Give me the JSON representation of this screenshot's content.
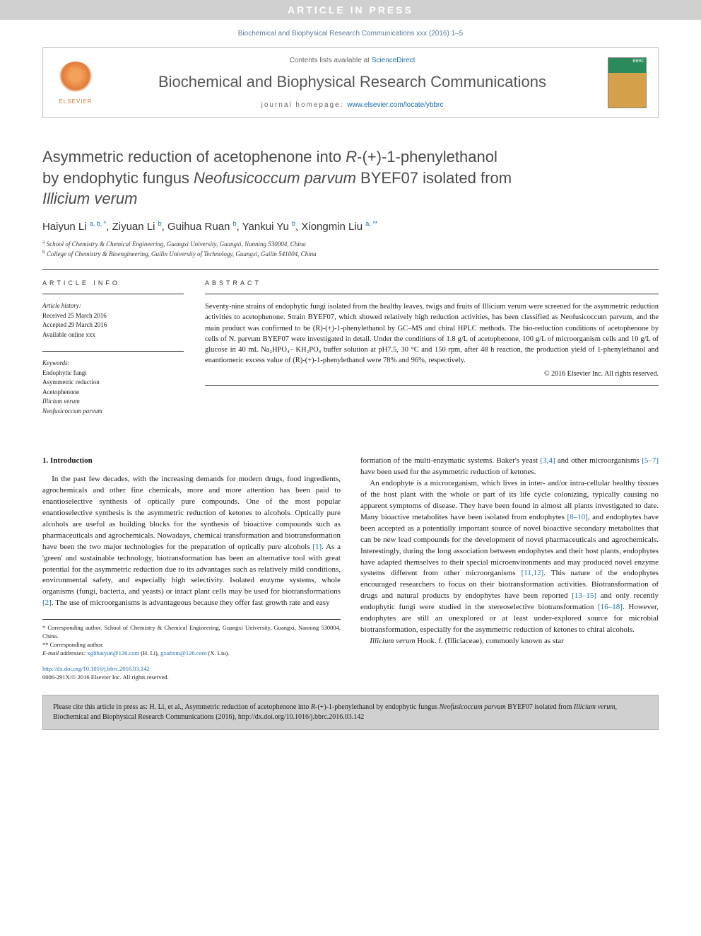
{
  "banner": {
    "text": "ARTICLE IN PRESS"
  },
  "journal_ref": "Biochemical and Biophysical Research Communications xxx (2016) 1–5",
  "header": {
    "contents_prefix": "Contents lists available at ",
    "contents_link": "ScienceDirect",
    "journal_name": "Biochemical and Biophysical Research Communications",
    "homepage_prefix": "journal homepage: ",
    "homepage_url": "www.elsevier.com/locate/ybbrc",
    "elsevier_label": "ELSEVIER"
  },
  "title": {
    "line1": "Asymmetric reduction of acetophenone into ",
    "line1_italic": "R",
    "line1_suffix": "-(+)-1-phenylethanol",
    "line2_prefix": "by endophytic fungus ",
    "line2_italic": "Neofusicoccum parvum",
    "line2_suffix": " BYEF07 isolated from",
    "line3_italic": "Illicium verum"
  },
  "authors": [
    {
      "name": "Haiyun Li",
      "marks": "a, b, *"
    },
    {
      "name": "Ziyuan Li",
      "marks": "b"
    },
    {
      "name": "Guihua Ruan",
      "marks": "b"
    },
    {
      "name": "Yankui Yu",
      "marks": "b"
    },
    {
      "name": "Xiongmin Liu",
      "marks": "a, **"
    }
  ],
  "affiliations": [
    {
      "mark": "a",
      "text": "School of Chemistry & Chemical Engineering, Guangxi University, Guangxi, Nanning 530004, China"
    },
    {
      "mark": "b",
      "text": "College of Chemistry & Bioengineering, Guilin University of Technology, Guangxi, Guilin 541004, China"
    }
  ],
  "article_info": {
    "heading": "ARTICLE INFO",
    "history_label": "Article history:",
    "received": "Received 25 March 2016",
    "accepted": "Accepted 29 March 2016",
    "available": "Available online xxx",
    "keywords_label": "Keywords:",
    "keywords": [
      "Endophytic fungi",
      "Asymmetric reduction",
      "Acetophenone",
      "Illicium verum",
      "Neofusicoccum parvum"
    ]
  },
  "abstract": {
    "heading": "ABSTRACT",
    "text": "Seventy-nine strains of endophytic fungi isolated from the healthy leaves, twigs and fruits of Illicium verum were screened for the asymmetric reduction activities to acetophenone. Strain BYEF07, which showed relatively high reduction activities, has been classified as Neofusicoccum parvum, and the main product was confirmed to be (R)-(+)-1-phenylethanol by GC–MS and chiral HPLC methods. The bio-reduction conditions of acetophenone by cells of N. parvum BYEF07 were investigated in detail. Under the conditions of 1.8 g/L of acetophenone, 100 g/L of microorganism cells and 10 g/L of glucose in 40 mL Na₂HPO₄– KH₂PO₄ buffer solution at pH7.5, 30 °C and 150 rpm, after 48 h reaction, the production yield of 1-phenylethanol and enantiomeric excess value of (R)-(+)-1-phenylethanol were 78% and 96%, respectively.",
    "copyright": "© 2016 Elsevier Inc. All rights reserved."
  },
  "sections": {
    "intro_heading": "1. Introduction",
    "p1": "In the past few decades, with the increasing demands for modern drugs, food ingredients, agrochemicals and other fine chemicals, more and more attention has been paid to enantioselective synthesis of optically pure compounds. One of the most popular enantioselective synthesis is the asymmetric reduction of ketones to alcohols. Optically pure alcohols are useful as building blocks for the synthesis of bioactive compounds such as pharmaceuticals and agrochemicals. Nowadays, chemical transformation and biotransformation have been the two major technologies for the preparation of optically pure alcohols ",
    "ref1": "[1]",
    "p1b": ". As a 'green' and sustainable technology, biotransformation has been an alternative tool with great potential for the asymmetric reduction due to its advantages such as relatively mild conditions, environmental safety, and especially high selectivity. Isolated enzyme systems, whole organisms (fungi, bacteria, and yeasts) or intact plant cells may be used for biotransformations ",
    "ref2": "[2]",
    "p1c": ". The use of microorganisms is advantageous because they offer fast growth rate and easy",
    "p2a": "formation of the multi-enzymatic systems. Baker's yeast ",
    "ref34": "[3,4]",
    "p2b": " and other microorganisms ",
    "ref57": "[5–7]",
    "p2c": " have been used for the asymmetric reduction of ketones.",
    "p3a": "An endophyte is a microorganism, which lives in inter- and/or intra-cellular healthy tissues of the host plant with the whole or part of its life cycle colonizing, typically causing no apparent symptoms of disease. They have been found in almost all plants investigated to date. Many bioactive metabolites have been isolated from endophytes ",
    "ref810": "[8–10]",
    "p3b": ", and endophytes have been accepted as a potentially important source of novel bioactive secondary metabolites that can be new lead compounds for the development of novel pharmaceuticals and agrochemicals. Interestingly, during the long association between endophytes and their host plants, endophytes have adapted themselves to their special microenvironments and may produced novel enzyme systems different from other microorganisms ",
    "ref1112": "[11,12]",
    "p3c": ". This nature of the endophytes encouraged researchers to focus on their biotransformation activities. Biotransformation of drugs and natural products by endophytes have been reported ",
    "ref1315": "[13–15]",
    "p3d": " and only recently endophytic fungi were studied in the stereoselective biotransformation ",
    "ref1618": "[16–18]",
    "p3e": ". However, endophytes are still an unexplored or at least under-explored source for microbial biotransformation, especially for the asymmetric reduction of ketones to chiral alcohols.",
    "p4_italic": "Illicium verum",
    "p4": " Hook. f. (Illiciaceae), commonly known as star"
  },
  "footnotes": {
    "corr1": "* Corresponding author. School of Chemistry & Chemical Engineering, Guangxi University, Guangxi, Nanning 530004, China.",
    "corr2": "** Corresponding author.",
    "email_label": "E-mail addresses: ",
    "email1": "xglihaiyun@126.com",
    "email1_name": " (H. Li), ",
    "email2": "gxuhxm@126.com",
    "email2_name": " (X. Liu)."
  },
  "doi": {
    "url": "http://dx.doi.org/10.1016/j.bbrc.2016.03.142",
    "issn": "0006-291X/© 2016 Elsevier Inc. All rights reserved."
  },
  "citation": {
    "prefix": "Please cite this article in press as: H. Li, et al., Asymmetric reduction of acetophenone into ",
    "i1": "R",
    "mid1": "-(+)-1-phenylethanol by endophytic fungus ",
    "i2": "Neofusicoccum parvum",
    "mid2": " BYEF07 isolated from ",
    "i3": "Illicium verum",
    "suffix": ", Biochemical and Biophysical Research Communications (2016), http://dx.doi.org/10.1016/j.bbrc.2016.03.142"
  },
  "colors": {
    "banner_bg": "#d0d0d0",
    "link": "#1b6ca8",
    "journal_ref": "#5a7a9a",
    "elsevier": "#e07b39"
  }
}
